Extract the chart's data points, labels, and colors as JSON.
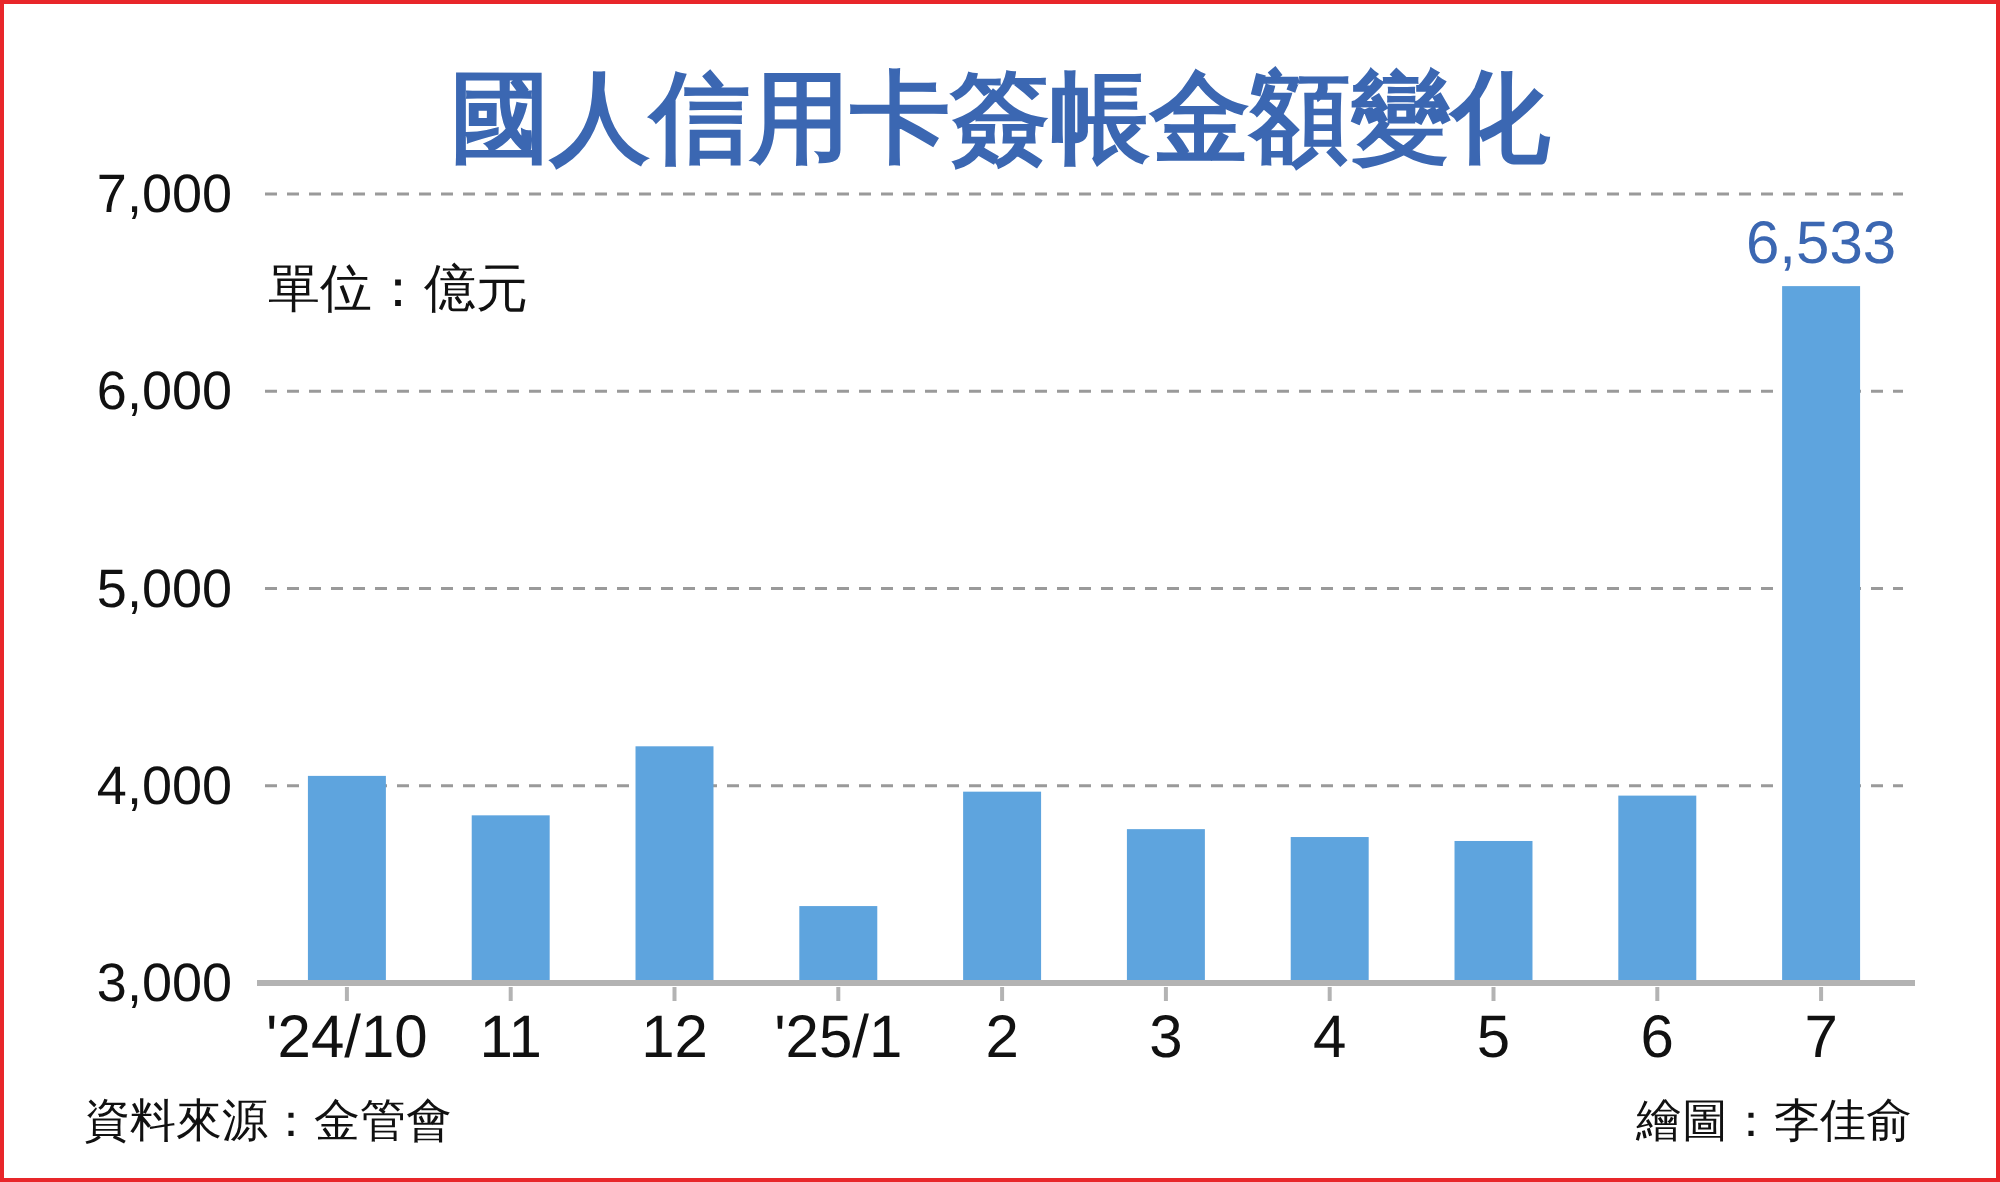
{
  "chart_data": {
    "type": "bar",
    "title": "國人信用卡簽帳金額變化",
    "ylabel": "單位：億元",
    "categories": [
      "'24/10",
      "11",
      "12",
      "'25/1",
      "2",
      "3",
      "4",
      "5",
      "6",
      "7"
    ],
    "values": [
      4050,
      3850,
      4200,
      3390,
      3970,
      3780,
      3740,
      3720,
      3950,
      6533
    ],
    "value_labels": [
      null,
      null,
      null,
      null,
      null,
      null,
      null,
      null,
      null,
      "6,533"
    ],
    "color": "#5ea4de",
    "ylim": [
      3000,
      7000
    ],
    "yticks": [
      {
        "value": 3000,
        "label": "3,000"
      },
      {
        "value": 4000,
        "label": "4,000"
      },
      {
        "value": 5000,
        "label": "5,000"
      },
      {
        "value": 6000,
        "label": "6,000"
      },
      {
        "value": 7000,
        "label": "7,000"
      }
    ],
    "grid": "y",
    "annotations": [
      "資料來源：金管會",
      "繪圖：李佳俞"
    ]
  }
}
